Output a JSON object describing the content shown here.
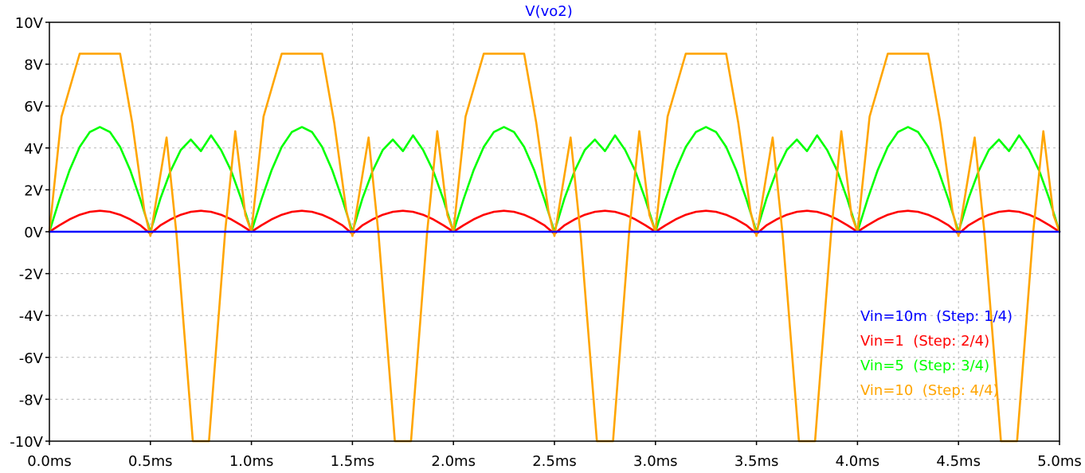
{
  "chart_data": {
    "type": "line",
    "title": "V(vo2)",
    "title_color": "#0000ff",
    "xlabel": "",
    "ylabel": "",
    "xlim": [
      0,
      5
    ],
    "ylim": [
      -10,
      10
    ],
    "x_unit": "ms",
    "y_unit": "V",
    "grid": true,
    "legend_position": "bottom-right",
    "x_ticks": [
      0,
      0.5,
      1,
      1.5,
      2,
      2.5,
      3,
      3.5,
      4,
      4.5,
      5
    ],
    "x_tick_labels": [
      "0.0ms",
      "0.5ms",
      "1.0ms",
      "1.5ms",
      "2.0ms",
      "2.5ms",
      "3.0ms",
      "3.5ms",
      "4.0ms",
      "4.5ms",
      "5.0ms"
    ],
    "y_ticks": [
      10,
      8,
      6,
      4,
      2,
      0,
      -2,
      -4,
      -6,
      -8,
      -10
    ],
    "y_tick_labels": [
      "10V",
      "8V",
      "6V",
      "4V",
      "2V",
      "0V",
      "-2V",
      "-4V",
      "-6V",
      "-8V",
      "-10V"
    ],
    "series": [
      {
        "name": "Vin=10m  (Step: 1/4)",
        "color": "#0000ff",
        "x": [
          0,
          5
        ],
        "y": [
          0,
          0
        ]
      },
      {
        "name": "Vin=1  (Step: 2/4)",
        "color": "#ff0000",
        "x": [
          0,
          0.05,
          0.1,
          0.15,
          0.2,
          0.25,
          0.3,
          0.35,
          0.4,
          0.45,
          0.5,
          0.55,
          0.6,
          0.65,
          0.7,
          0.75,
          0.8,
          0.85,
          0.9,
          0.95,
          1.0,
          1.05,
          1.1,
          1.15,
          1.2,
          1.25,
          1.3,
          1.35,
          1.4,
          1.45,
          1.5,
          1.55,
          1.6,
          1.65,
          1.7,
          1.75,
          1.8,
          1.85,
          1.9,
          1.95,
          2.0,
          2.05,
          2.1,
          2.15,
          2.2,
          2.25,
          2.3,
          2.35,
          2.4,
          2.45,
          2.5,
          2.55,
          2.6,
          2.65,
          2.7,
          2.75,
          2.8,
          2.85,
          2.9,
          2.95,
          3.0,
          3.05,
          3.1,
          3.15,
          3.2,
          3.25,
          3.3,
          3.35,
          3.4,
          3.45,
          3.5,
          3.55,
          3.6,
          3.65,
          3.7,
          3.75,
          3.8,
          3.85,
          3.9,
          3.95,
          4.0,
          4.05,
          4.1,
          4.15,
          4.2,
          4.25,
          4.3,
          4.35,
          4.4,
          4.45,
          4.5,
          4.55,
          4.6,
          4.65,
          4.7,
          4.75,
          4.8,
          4.85,
          4.9,
          4.95,
          5.0
        ],
        "y": [
          0,
          0.31,
          0.59,
          0.81,
          0.95,
          1.0,
          0.95,
          0.81,
          0.59,
          0.31,
          -0.1,
          0.31,
          0.59,
          0.81,
          0.95,
          1.0,
          0.95,
          0.81,
          0.59,
          0.31,
          0,
          0.31,
          0.59,
          0.81,
          0.95,
          1.0,
          0.95,
          0.81,
          0.59,
          0.31,
          -0.1,
          0.31,
          0.59,
          0.81,
          0.95,
          1.0,
          0.95,
          0.81,
          0.59,
          0.31,
          0,
          0.31,
          0.59,
          0.81,
          0.95,
          1.0,
          0.95,
          0.81,
          0.59,
          0.31,
          -0.1,
          0.31,
          0.59,
          0.81,
          0.95,
          1.0,
          0.95,
          0.81,
          0.59,
          0.31,
          0,
          0.31,
          0.59,
          0.81,
          0.95,
          1.0,
          0.95,
          0.81,
          0.59,
          0.31,
          -0.1,
          0.31,
          0.59,
          0.81,
          0.95,
          1.0,
          0.95,
          0.81,
          0.59,
          0.31,
          0,
          0.31,
          0.59,
          0.81,
          0.95,
          1.0,
          0.95,
          0.81,
          0.59,
          0.31,
          -0.1,
          0.31,
          0.59,
          0.81,
          0.95,
          1.0,
          0.95,
          0.81,
          0.59,
          0.31,
          0
        ]
      },
      {
        "name": "Vin=5  (Step: 3/4)",
        "color": "#00ff00",
        "x": [
          0,
          0.05,
          0.1,
          0.15,
          0.2,
          0.25,
          0.3,
          0.35,
          0.4,
          0.45,
          0.5,
          0.55,
          0.6,
          0.65,
          0.7,
          0.75,
          0.8,
          0.85,
          0.9,
          0.95,
          1.0,
          1.05,
          1.1,
          1.15,
          1.2,
          1.25,
          1.3,
          1.35,
          1.4,
          1.45,
          1.5,
          1.55,
          1.6,
          1.65,
          1.7,
          1.75,
          1.8,
          1.85,
          1.9,
          1.95,
          2.0,
          2.05,
          2.1,
          2.15,
          2.2,
          2.25,
          2.3,
          2.35,
          2.4,
          2.45,
          2.5,
          2.55,
          2.6,
          2.65,
          2.7,
          2.75,
          2.8,
          2.85,
          2.9,
          2.95,
          3.0,
          3.05,
          3.1,
          3.15,
          3.2,
          3.25,
          3.3,
          3.35,
          3.4,
          3.45,
          3.5,
          3.55,
          3.6,
          3.65,
          3.7,
          3.75,
          3.8,
          3.85,
          3.9,
          3.95,
          4.0,
          4.05,
          4.1,
          4.15,
          4.2,
          4.25,
          4.3,
          4.35,
          4.4,
          4.45,
          4.5,
          4.55,
          4.6,
          4.65,
          4.7,
          4.75,
          4.8,
          4.85,
          4.9,
          4.95,
          5.0
        ],
        "y": [
          0,
          1.55,
          2.94,
          4.05,
          4.76,
          5.0,
          4.76,
          4.05,
          2.94,
          1.55,
          0,
          1.6,
          2.9,
          3.9,
          4.4,
          3.85,
          4.6,
          3.9,
          2.9,
          1.55,
          0,
          1.55,
          2.94,
          4.05,
          4.76,
          5.0,
          4.76,
          4.05,
          2.94,
          1.55,
          0,
          1.6,
          2.9,
          3.9,
          4.4,
          3.85,
          4.6,
          3.9,
          2.9,
          1.55,
          0,
          1.55,
          2.94,
          4.05,
          4.76,
          5.0,
          4.76,
          4.05,
          2.94,
          1.55,
          0,
          1.6,
          2.9,
          3.9,
          4.4,
          3.85,
          4.6,
          3.9,
          2.9,
          1.55,
          0,
          1.55,
          2.94,
          4.05,
          4.76,
          5.0,
          4.76,
          4.05,
          2.94,
          1.55,
          0,
          1.6,
          2.9,
          3.9,
          4.4,
          3.85,
          4.6,
          3.9,
          2.9,
          1.55,
          0,
          1.55,
          2.94,
          4.05,
          4.76,
          5.0,
          4.76,
          4.05,
          2.94,
          1.55,
          0,
          1.6,
          2.9,
          3.9,
          4.4,
          3.85,
          4.6,
          3.9,
          2.9,
          1.55,
          0
        ]
      },
      {
        "name": "Vin=10  (Step: 4/4)",
        "color": "#ffa500",
        "x": [
          0,
          0.06,
          0.15,
          0.35,
          0.41,
          0.47,
          0.5,
          0.58,
          0.63,
          0.71,
          0.79,
          0.87,
          0.92,
          0.97,
          1.0,
          1.06,
          1.15,
          1.35,
          1.41,
          1.47,
          1.5,
          1.58,
          1.63,
          1.71,
          1.79,
          1.87,
          1.92,
          1.97,
          2.0,
          2.06,
          2.15,
          2.35,
          2.41,
          2.47,
          2.5,
          2.58,
          2.63,
          2.71,
          2.79,
          2.87,
          2.92,
          2.97,
          3.0,
          3.06,
          3.15,
          3.35,
          3.41,
          3.47,
          3.5,
          3.58,
          3.63,
          3.71,
          3.79,
          3.87,
          3.92,
          3.97,
          4.0,
          4.06,
          4.15,
          4.35,
          4.41,
          4.47,
          4.5,
          4.58,
          4.63,
          4.71,
          4.79,
          4.87,
          4.92,
          4.97,
          5.0
        ],
        "y": [
          0,
          5.5,
          8.5,
          8.5,
          5.2,
          1.0,
          -0.2,
          4.5,
          -0.2,
          -10.0,
          -10.0,
          0.0,
          4.8,
          0.8,
          0,
          5.5,
          8.5,
          8.5,
          5.2,
          1.0,
          -0.2,
          4.5,
          -0.2,
          -10.0,
          -10.0,
          0.0,
          4.8,
          0.8,
          0,
          5.5,
          8.5,
          8.5,
          5.2,
          1.0,
          -0.2,
          4.5,
          -0.2,
          -10.0,
          -10.0,
          0.0,
          4.8,
          0.8,
          0,
          5.5,
          8.5,
          8.5,
          5.2,
          1.0,
          -0.2,
          4.5,
          -0.2,
          -10.0,
          -10.0,
          0.0,
          4.8,
          0.8,
          0,
          5.5,
          8.5,
          8.5,
          5.2,
          1.0,
          -0.2,
          4.5,
          -0.2,
          -10.0,
          -10.0,
          0.0,
          4.8,
          0.8,
          0
        ]
      }
    ]
  }
}
